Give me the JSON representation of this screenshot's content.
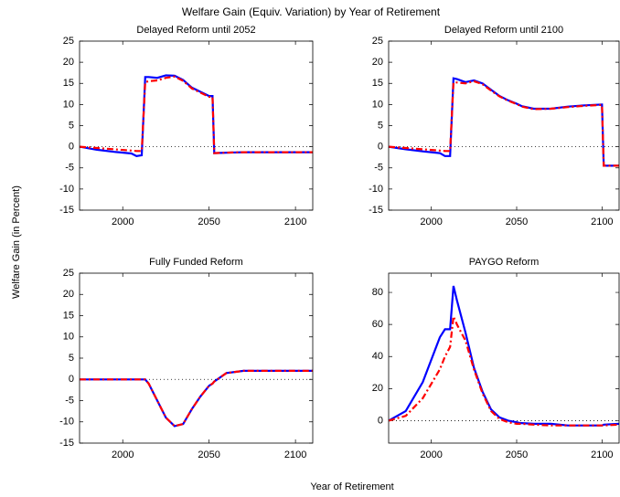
{
  "title": "Welfare Gain (Equiv. Variation) by Year of Retirement",
  "ylabel": "Welfare Gain (in Percent)",
  "xlabel": "Year of Retirement",
  "chart_data": [
    {
      "type": "line",
      "title": "Delayed Reform until 2052",
      "x": [
        1975,
        1985,
        1995,
        2005,
        2008,
        2011,
        2013,
        2015,
        2020,
        2025,
        2030,
        2035,
        2040,
        2045,
        2050,
        2052,
        2053,
        2060,
        2070,
        2080,
        2090,
        2100,
        2101,
        2110
      ],
      "series": [
        {
          "color": "#0000ff",
          "dash": "solid",
          "values": [
            0,
            -0.7,
            -1.2,
            -1.6,
            -2.2,
            -2.0,
            16.5,
            16.5,
            16.3,
            16.9,
            16.8,
            15.8,
            14.0,
            13.0,
            12.0,
            12.0,
            -1.5,
            -1.4,
            -1.3,
            -1.3,
            -1.3,
            -1.3,
            -1.3,
            -1.3
          ]
        },
        {
          "color": "#ff0000",
          "dash": "dashdot",
          "values": [
            0,
            -0.3,
            -0.6,
            -0.9,
            -1.0,
            -1.0,
            15.3,
            15.5,
            15.7,
            16.3,
            16.6,
            15.6,
            13.8,
            12.8,
            11.8,
            11.8,
            -1.5,
            -1.4,
            -1.3,
            -1.3,
            -1.3,
            -1.3,
            -1.3,
            -1.3
          ]
        }
      ],
      "xlim": [
        1975,
        2110
      ],
      "xticks": [
        2000,
        2050,
        2100
      ],
      "ylim": [
        -15,
        25
      ],
      "yticks": [
        -15,
        -10,
        -5,
        0,
        5,
        10,
        15,
        20,
        25
      ],
      "zero_line": true
    },
    {
      "type": "line",
      "title": "Delayed Reform until 2100",
      "x": [
        1975,
        1985,
        1995,
        2005,
        2008,
        2011,
        2013,
        2015,
        2020,
        2025,
        2030,
        2035,
        2040,
        2045,
        2050,
        2052,
        2053,
        2060,
        2070,
        2080,
        2090,
        2100,
        2101,
        2110
      ],
      "series": [
        {
          "color": "#0000ff",
          "dash": "solid",
          "values": [
            0,
            -0.6,
            -1.1,
            -1.5,
            -2.2,
            -2.2,
            16.2,
            16.0,
            15.3,
            15.7,
            15.0,
            13.5,
            12.0,
            11.0,
            10.2,
            9.8,
            9.6,
            9.0,
            9.0,
            9.5,
            9.8,
            10.0,
            -4.5,
            -4.5
          ]
        },
        {
          "color": "#ff0000",
          "dash": "dashdot",
          "values": [
            0,
            -0.3,
            -0.6,
            -0.9,
            -1.0,
            -1.0,
            15.2,
            15.2,
            15.0,
            15.5,
            14.8,
            13.3,
            11.9,
            10.9,
            10.1,
            9.7,
            9.5,
            8.9,
            9.0,
            9.4,
            9.7,
            9.9,
            -4.5,
            -4.5
          ]
        }
      ],
      "xlim": [
        1975,
        2110
      ],
      "xticks": [
        2000,
        2050,
        2100
      ],
      "ylim": [
        -15,
        25
      ],
      "yticks": [
        -15,
        -10,
        -5,
        0,
        5,
        10,
        15,
        20,
        25
      ],
      "zero_line": true
    },
    {
      "type": "line",
      "title": "Fully Funded Reform",
      "x": [
        1975,
        1985,
        1995,
        2005,
        2008,
        2011,
        2013,
        2015,
        2020,
        2025,
        2030,
        2035,
        2040,
        2045,
        2050,
        2052,
        2053,
        2060,
        2070,
        2080,
        2090,
        2100,
        2101,
        2110
      ],
      "series": [
        {
          "color": "#0000ff",
          "dash": "solid",
          "values": [
            0,
            0,
            0,
            0,
            0,
            0,
            0,
            -1,
            -5,
            -9,
            -11,
            -10.5,
            -7,
            -4,
            -1.5,
            -1,
            -0.5,
            1.5,
            2,
            2,
            2,
            2,
            2,
            2
          ]
        },
        {
          "color": "#ff0000",
          "dash": "dashdot",
          "values": [
            0,
            0,
            0,
            0,
            0,
            0,
            0,
            -1,
            -5,
            -9,
            -11,
            -10.5,
            -7,
            -4,
            -1.5,
            -1,
            -0.5,
            1.5,
            2,
            2,
            2,
            2,
            2,
            2
          ]
        }
      ],
      "xlim": [
        1975,
        2110
      ],
      "xticks": [
        2000,
        2050,
        2100
      ],
      "ylim": [
        -15,
        25
      ],
      "yticks": [
        -15,
        -10,
        -5,
        0,
        5,
        10,
        15,
        20,
        25
      ],
      "zero_line": true
    },
    {
      "type": "line",
      "title": "PAYGO Reform",
      "x": [
        1975,
        1985,
        1995,
        2005,
        2008,
        2011,
        2013,
        2015,
        2020,
        2025,
        2030,
        2035,
        2040,
        2045,
        2050,
        2052,
        2053,
        2060,
        2070,
        2080,
        2090,
        2100,
        2101,
        2110
      ],
      "series": [
        {
          "color": "#0000ff",
          "dash": "solid",
          "values": [
            0,
            6,
            24,
            52,
            57,
            57,
            84,
            75,
            55,
            33,
            18,
            7,
            2,
            0,
            -1,
            -1.5,
            -1.5,
            -2,
            -2,
            -3,
            -3,
            -3,
            -2.5,
            -2
          ]
        },
        {
          "color": "#ff0000",
          "dash": "dashdot",
          "values": [
            0,
            3,
            14,
            32,
            40,
            46,
            65,
            60,
            50,
            32,
            17,
            6,
            1,
            -1,
            -2,
            -2,
            -2,
            -2.5,
            -3,
            -3,
            -3,
            -3,
            -3,
            -2.5
          ]
        }
      ],
      "xlim": [
        1975,
        2110
      ],
      "xticks": [
        2000,
        2050,
        2100
      ],
      "ylim": [
        -14,
        92
      ],
      "yticks": [
        0,
        20,
        40,
        60,
        80
      ],
      "zero_line": true
    }
  ]
}
